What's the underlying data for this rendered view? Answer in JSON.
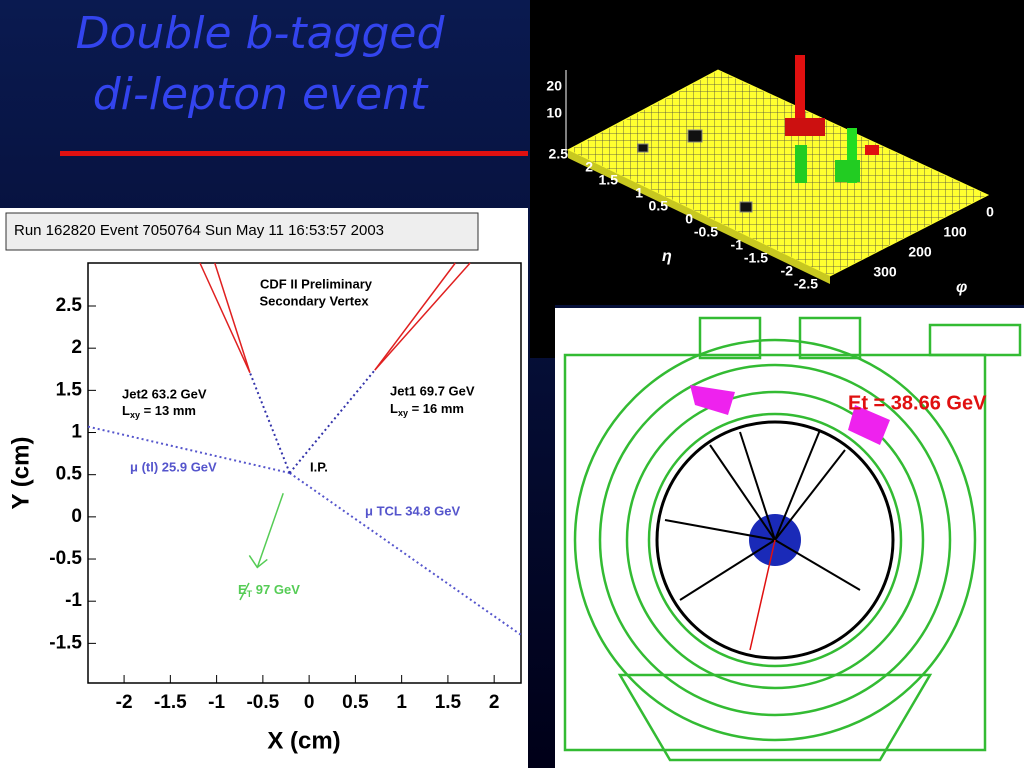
{
  "slide": {
    "title_lines": [
      "Double b-tagged",
      "di-lepton event"
    ],
    "run_info": "Run 162820 Event 7050764 Sun May 11 16:53:57 2003"
  },
  "chart_data": {
    "type": "line",
    "xlabel": "X (cm)",
    "ylabel": "Y (cm)",
    "xlim": [
      -2.39,
      2.29
    ],
    "ylim": [
      -1.97,
      3.01
    ],
    "xticks": [
      -2,
      -1.5,
      -1,
      -0.5,
      0,
      0.5,
      1,
      1.5,
      2
    ],
    "yticks": [
      -1.5,
      -1,
      -0.5,
      0,
      0.5,
      1,
      1.5,
      2,
      2.5
    ],
    "series": [
      {
        "color": "#5555cc",
        "x": [
          -0.21,
          -2.39
        ],
        "values": [
          0.52,
          1.07
        ]
      },
      {
        "color": "#5555cc",
        "x": [
          -0.21,
          2.29
        ],
        "values": [
          0.52,
          -1.4
        ]
      },
      {
        "color": "#3333aa",
        "x": [
          -0.21,
          -0.64
        ],
        "values": [
          0.52,
          1.71
        ]
      },
      {
        "color": "#3333aa",
        "x": [
          -0.21,
          0.71
        ],
        "values": [
          0.52,
          1.74
        ]
      },
      {
        "color": "#e02020",
        "x": [
          -0.64,
          -1.18
        ],
        "values": [
          1.71,
          3.01
        ]
      },
      {
        "color": "#e02020",
        "x": [
          -0.64,
          -1.02
        ],
        "values": [
          1.71,
          3.01
        ]
      },
      {
        "color": "#e02020",
        "x": [
          0.71,
          1.58
        ],
        "values": [
          1.74,
          3.01
        ]
      },
      {
        "color": "#e02020",
        "x": [
          0.71,
          1.74
        ],
        "values": [
          1.74,
          3.01
        ]
      },
      {
        "color": "#55cc55",
        "x": [
          -0.28,
          -0.56
        ],
        "values": [
          0.28,
          -0.6
        ]
      }
    ],
    "annotations": {
      "header": [
        "CDF II Preliminary",
        "Secondary Vertex"
      ],
      "jet2": "Jet2 63.2 GeV",
      "jet2_lxy": [
        "L",
        "xy",
        " = 13 mm"
      ],
      "jet1": "Jet1 69.7 GeV",
      "jet1_lxy": [
        "L",
        "xy",
        " = 16 mm"
      ],
      "mu_tl": "μ (tl) 25.9 GeV",
      "mu_tcl": "μ TCL 34.8 GeV",
      "met": [
        "E",
        "T",
        " 97 GeV"
      ],
      "ip": "I.P."
    }
  },
  "lego": {
    "zticks": [
      "20",
      "10"
    ],
    "eta_ticks": [
      "2.5",
      "2",
      "1.5",
      "1",
      "0.5",
      "0",
      "-0.5",
      "-1",
      "-1.5",
      "-2",
      "-2.5"
    ],
    "phi_ticks": [
      "0",
      "100",
      "200",
      "300"
    ],
    "eta_label": "η",
    "phi_label": "φ"
  },
  "event_display": {
    "et_label": "Et = 38.66 GeV"
  }
}
